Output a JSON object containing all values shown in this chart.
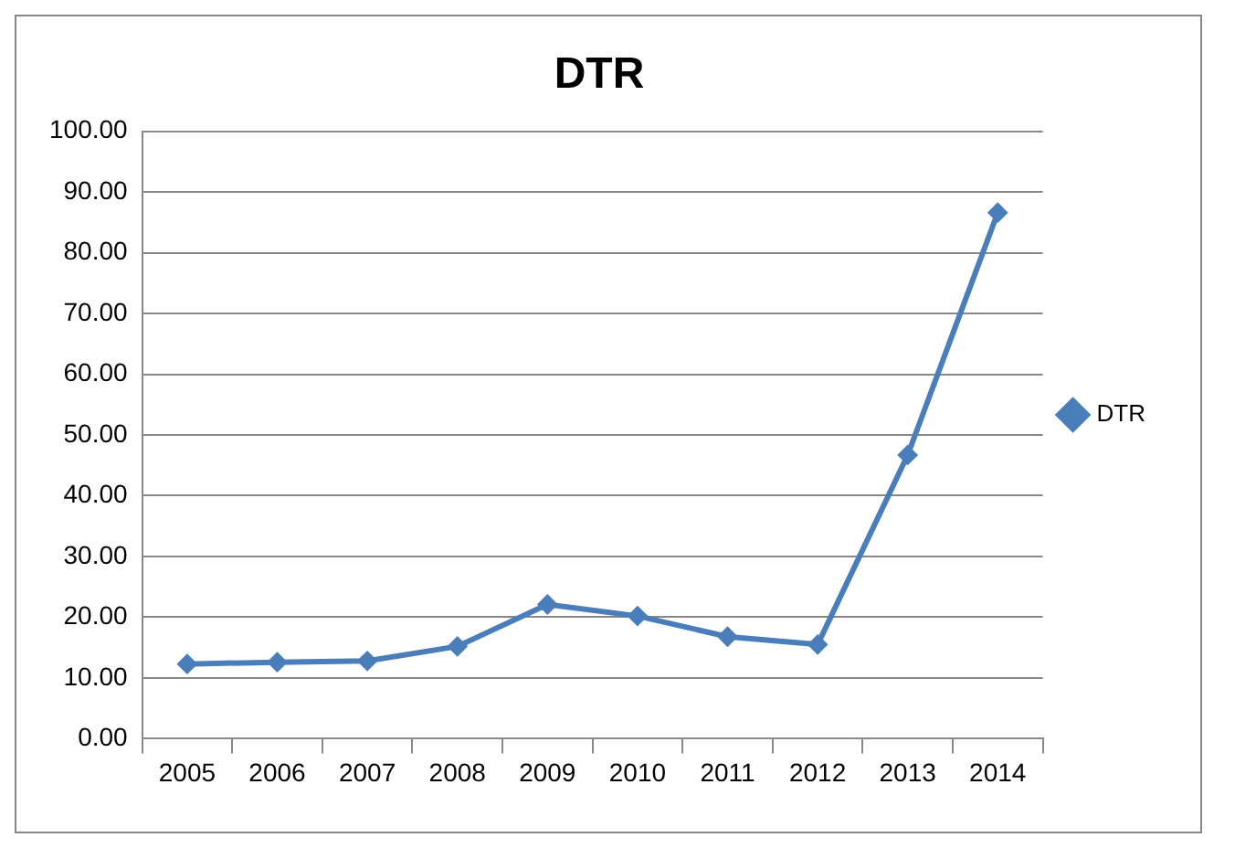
{
  "chart_data": {
    "type": "line",
    "title": "DTR",
    "categories": [
      "2005",
      "2006",
      "2007",
      "2008",
      "2009",
      "2010",
      "2011",
      "2012",
      "2013",
      "2014"
    ],
    "series": [
      {
        "name": "DTR",
        "color": "#4a7ebb",
        "values": [
          12.3,
          12.6,
          12.8,
          15.2,
          22.1,
          20.2,
          16.8,
          15.5,
          46.7,
          86.6
        ]
      }
    ],
    "ylim": [
      0,
      100
    ],
    "yticks": [
      {
        "value": 0,
        "label": "0.00"
      },
      {
        "value": 10,
        "label": "10.00"
      },
      {
        "value": 20,
        "label": "20.00"
      },
      {
        "value": 30,
        "label": "30.00"
      },
      {
        "value": 40,
        "label": "40.00"
      },
      {
        "value": 50,
        "label": "50.00"
      },
      {
        "value": 60,
        "label": "60.00"
      },
      {
        "value": 70,
        "label": "70.00"
      },
      {
        "value": 80,
        "label": "80.00"
      },
      {
        "value": 90,
        "label": "90.00"
      },
      {
        "value": 100,
        "label": "100.00"
      }
    ],
    "grid": "y",
    "legend": "right",
    "marker": "diamond",
    "line_style": "solid"
  }
}
